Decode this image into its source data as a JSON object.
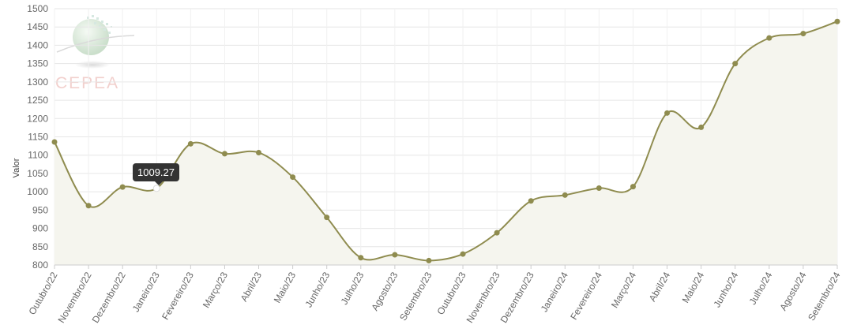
{
  "chart_data": {
    "type": "area",
    "categories": [
      "Outubro/22",
      "Novembro/22",
      "Dezembro/22",
      "Janeiro/23",
      "Fevereiro/23",
      "Março/23",
      "Abril/23",
      "Maio/23",
      "Junho/23",
      "Julho/23",
      "Agosto/23",
      "Setembro/23",
      "Outubro/23",
      "Novembro/23",
      "Dezembro/23",
      "Janeiro/24",
      "Fevereiro/24",
      "Março/24",
      "Abril/24",
      "Maio/24",
      "Junho/24",
      "Julho/24",
      "Agosto/24",
      "Setembro/24"
    ],
    "values": [
      1136,
      962,
      1013,
      1009.27,
      1131,
      1104,
      1107,
      1040,
      930,
      820,
      828,
      812,
      830,
      888,
      975,
      991,
      1010,
      1014,
      1215,
      1176,
      1350,
      1420,
      1432,
      1465
    ],
    "ylabel": "Valor",
    "ylim": [
      800,
      1500
    ],
    "yticks": [
      800,
      850,
      900,
      950,
      1000,
      1050,
      1100,
      1150,
      1200,
      1250,
      1300,
      1350,
      1400,
      1450,
      1500
    ],
    "grid": true,
    "highlight_index": 3,
    "colors": {
      "line": "#8f8c4f",
      "fill": "#f5f5ee",
      "point": "#8f8c4f",
      "grid": "#e6e6e6"
    }
  },
  "tooltip": {
    "text": "1009.27"
  },
  "watermark": {
    "text": "CEPEA"
  }
}
